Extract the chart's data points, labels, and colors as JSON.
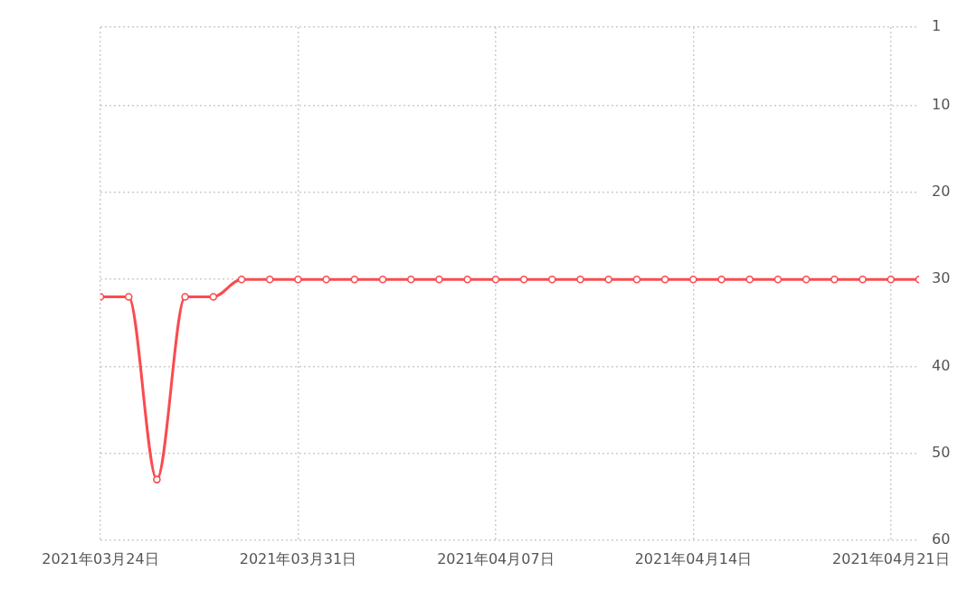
{
  "chart_data": {
    "type": "line",
    "x": [
      "2021-03-24",
      "2021-03-25",
      "2021-03-26",
      "2021-03-27",
      "2021-03-28",
      "2021-03-29",
      "2021-03-30",
      "2021-03-31",
      "2021-04-01",
      "2021-04-02",
      "2021-04-03",
      "2021-04-04",
      "2021-04-05",
      "2021-04-06",
      "2021-04-07",
      "2021-04-08",
      "2021-04-09",
      "2021-04-10",
      "2021-04-11",
      "2021-04-12",
      "2021-04-13",
      "2021-04-14",
      "2021-04-15",
      "2021-04-16",
      "2021-04-17",
      "2021-04-18",
      "2021-04-19",
      "2021-04-20",
      "2021-04-21",
      "2021-04-22"
    ],
    "series": [
      {
        "color": "#fa4b4f",
        "values": [
          32,
          32,
          53,
          32,
          32,
          30,
          30,
          30,
          30,
          30,
          30,
          30,
          30,
          30,
          30,
          30,
          30,
          30,
          30,
          30,
          30,
          30,
          30,
          30,
          30,
          30,
          30,
          30,
          30,
          30
        ]
      }
    ],
    "xlim": [
      "2021-03-24",
      "2021-04-22"
    ],
    "xticks": [
      {
        "value": "2021-03-24",
        "label": "2021年03月24日"
      },
      {
        "value": "2021-03-31",
        "label": "2021年03月31日"
      },
      {
        "value": "2021-04-07",
        "label": "2021年04月07日"
      },
      {
        "value": "2021-04-14",
        "label": "2021年04月14日"
      },
      {
        "value": "2021-04-21",
        "label": "2021年04月21日"
      }
    ],
    "ylim": [
      60,
      1
    ],
    "yticks": [
      1,
      10,
      20,
      30,
      40,
      50,
      60
    ],
    "grid": true,
    "marker": "circle",
    "line_style": "solid"
  }
}
